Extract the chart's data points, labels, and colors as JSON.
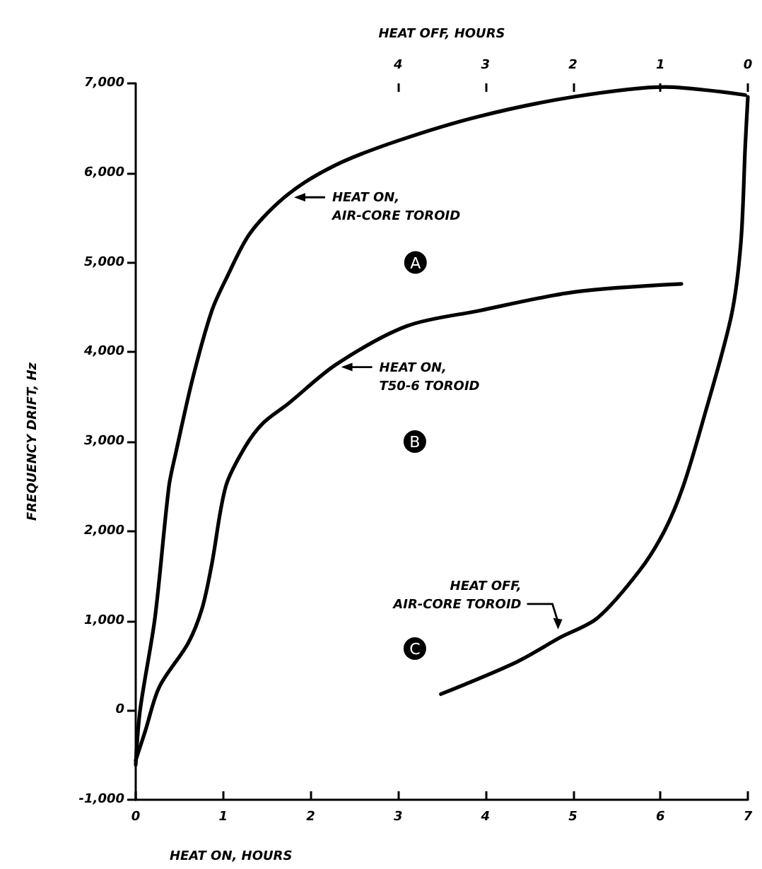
{
  "chart_data": {
    "type": "line",
    "xlabel": "HEAT ON, HOURS",
    "ylabel": "FREQUENCY DRIFT, Hz",
    "x2label": "HEAT OFF, HOURS",
    "xlim": [
      0,
      7
    ],
    "xticks": [
      0,
      1,
      2,
      3,
      4,
      5,
      6,
      7
    ],
    "x2lim": [
      7,
      0
    ],
    "x2ticks": [
      4,
      3,
      2,
      1,
      0
    ],
    "ylim": [
      -1000,
      7000
    ],
    "yticks": [
      {
        "value": -1000,
        "label": "-1,000"
      },
      0,
      {
        "value": 1000,
        "label": "1,000"
      },
      {
        "value": 2000,
        "label": "2,000"
      },
      {
        "value": 3000,
        "label": "3,000"
      },
      {
        "value": 4000,
        "label": "4,000"
      },
      {
        "value": 5000,
        "label": "5,000"
      },
      {
        "value": 6000,
        "label": "6,000"
      },
      {
        "value": 7000,
        "label": "7,000"
      }
    ],
    "grid": false,
    "marker": "none",
    "line_style": "solid",
    "series": [
      {
        "color": "#000000",
        "x": [
          0,
          0.05,
          0.22,
          0.38,
          0.46,
          0.65,
          0.87,
          1.03,
          1.31,
          1.74,
          2.29,
          3.0,
          3.92,
          5.01,
          6.05,
          6.97
        ],
        "values": [
          -610,
          0,
          1030,
          2500,
          2880,
          3700,
          4460,
          4810,
          5330,
          5760,
          6090,
          6360,
          6630,
          6850,
          6960,
          6870
        ]
      },
      {
        "color": "#000000",
        "x": [
          0,
          0.11,
          0.27,
          0.6,
          0.76,
          0.87,
          1.03,
          1.25,
          1.46,
          1.74,
          2.29,
          3.1,
          3.92,
          5.01,
          6.24
        ],
        "values": [
          -560,
          -230,
          260,
          750,
          1140,
          1630,
          2500,
          2940,
          3210,
          3420,
          3860,
          4290,
          4460,
          4670,
          4760
        ]
      },
      {
        "color": "#000000",
        "axis": "x2",
        "x": [
          0,
          0.03,
          0.08,
          0.19,
          0.52,
          0.74,
          0.95,
          1.23,
          1.72,
          2.15,
          2.64,
          3.51
        ],
        "values": [
          6850,
          6300,
          5220,
          4400,
          3210,
          2500,
          2010,
          1570,
          1030,
          810,
          540,
          180
        ]
      }
    ],
    "annotations": [
      "HEAT ON,\nAIR-CORE TOROID",
      "HEAT ON,\nT50-6 TOROID",
      "HEAT OFF,\nAIR-CORE TOROID",
      "A",
      "B",
      "C"
    ]
  }
}
